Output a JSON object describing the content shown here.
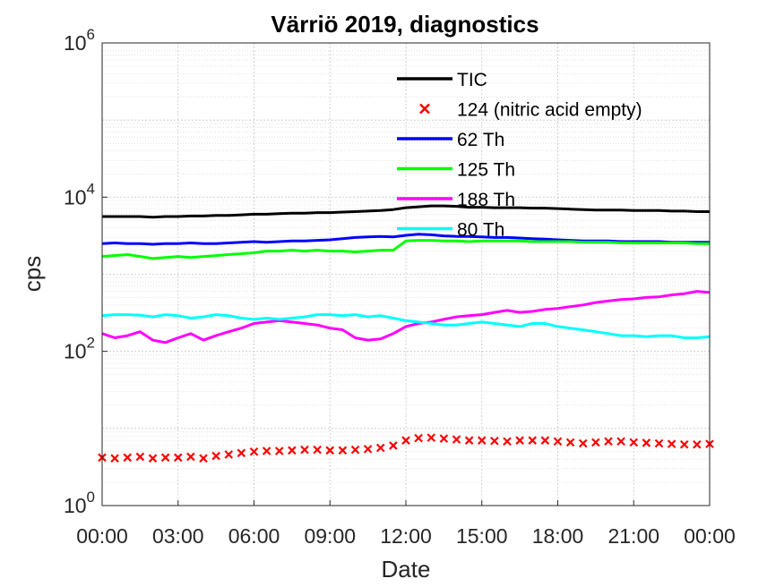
{
  "chart_data": {
    "type": "line",
    "title": "Värriö 2019, diagnostics",
    "xlabel": "Date",
    "ylabel": "cps",
    "x_tick_labels": [
      "00:00",
      "03:00",
      "06:00",
      "09:00",
      "12:00",
      "15:00",
      "18:00",
      "21:00",
      "00:00"
    ],
    "x_range_hours": [
      0,
      24
    ],
    "y_scale": "log",
    "ylim": [
      1,
      1000000
    ],
    "y_ticks": [
      {
        "base": "10",
        "exp": "0"
      },
      {
        "base": "10",
        "exp": "2"
      },
      {
        "base": "10",
        "exp": "4"
      },
      {
        "base": "10",
        "exp": "6"
      }
    ],
    "grid": true,
    "legend_position": "top-center",
    "x_hours": [
      0,
      0.5,
      1,
      1.5,
      2,
      2.5,
      3,
      3.5,
      4,
      4.5,
      5,
      5.5,
      6,
      6.5,
      7,
      7.5,
      8,
      8.5,
      9,
      9.5,
      10,
      10.5,
      11,
      11.5,
      12,
      12.5,
      13,
      13.5,
      14,
      14.5,
      15,
      15.5,
      16,
      16.5,
      17,
      17.5,
      18,
      18.5,
      19,
      19.5,
      20,
      20.5,
      21,
      21.5,
      22,
      22.5,
      23,
      23.5,
      24
    ],
    "series": [
      {
        "name": "TIC",
        "color": "#000000",
        "style": "line",
        "values": [
          5600,
          5600,
          5600,
          5600,
          5500,
          5600,
          5600,
          5700,
          5700,
          5800,
          5800,
          5900,
          6000,
          6000,
          6100,
          6200,
          6200,
          6300,
          6300,
          6400,
          6500,
          6600,
          6700,
          6900,
          7300,
          7500,
          7700,
          7700,
          7600,
          7400,
          7400,
          7300,
          7300,
          7300,
          7200,
          7200,
          7100,
          7000,
          6900,
          6800,
          6800,
          6800,
          6700,
          6700,
          6700,
          6600,
          6600,
          6500,
          6500
        ]
      },
      {
        "name": "124 (nitric acid empty)",
        "color": "#ff0000",
        "style": "marker",
        "values": [
          4.2,
          4.1,
          4.2,
          4.3,
          4.1,
          4.2,
          4.2,
          4.3,
          4.1,
          4.4,
          4.6,
          4.8,
          5.0,
          5.1,
          5.1,
          5.2,
          5.3,
          5.3,
          5.2,
          5.2,
          5.3,
          5.4,
          5.6,
          6.0,
          7.0,
          7.5,
          7.6,
          7.4,
          7.2,
          7.0,
          7.0,
          6.9,
          6.8,
          7.0,
          7.0,
          7.0,
          6.8,
          6.6,
          6.4,
          6.6,
          6.8,
          6.8,
          6.6,
          6.5,
          6.4,
          6.3,
          6.2,
          6.2,
          6.3
        ]
      },
      {
        "name": "62 Th",
        "color": "#0000ff",
        "style": "line",
        "values": [
          2500,
          2550,
          2500,
          2500,
          2450,
          2500,
          2500,
          2550,
          2500,
          2500,
          2550,
          2600,
          2650,
          2600,
          2650,
          2700,
          2700,
          2750,
          2800,
          2900,
          3000,
          3050,
          3100,
          3050,
          3200,
          3300,
          3250,
          3150,
          3100,
          3100,
          3050,
          3000,
          3000,
          2950,
          2900,
          2850,
          2800,
          2750,
          2700,
          2700,
          2700,
          2650,
          2650,
          2650,
          2650,
          2600,
          2600,
          2600,
          2600
        ]
      },
      {
        "name": "125 Th",
        "color": "#00ff00",
        "style": "line",
        "values": [
          1700,
          1750,
          1800,
          1700,
          1600,
          1650,
          1700,
          1650,
          1700,
          1750,
          1800,
          1850,
          1900,
          2000,
          2000,
          2050,
          2000,
          2050,
          2000,
          2000,
          1950,
          2000,
          2050,
          2050,
          2700,
          2750,
          2750,
          2700,
          2700,
          2650,
          2700,
          2700,
          2700,
          2700,
          2650,
          2650,
          2650,
          2650,
          2600,
          2600,
          2600,
          2550,
          2550,
          2550,
          2550,
          2550,
          2550,
          2500,
          2500
        ]
      },
      {
        "name": "188 Th",
        "color": "#ff00ff",
        "style": "line",
        "values": [
          170,
          150,
          160,
          180,
          140,
          130,
          150,
          170,
          140,
          160,
          180,
          200,
          230,
          240,
          250,
          240,
          230,
          220,
          200,
          190,
          150,
          140,
          145,
          170,
          210,
          230,
          240,
          260,
          280,
          290,
          300,
          320,
          340,
          320,
          330,
          350,
          360,
          380,
          400,
          430,
          450,
          470,
          480,
          500,
          510,
          540,
          560,
          600,
          580
        ]
      },
      {
        "name": "80 Th",
        "color": "#00ffff",
        "style": "line",
        "values": [
          290,
          300,
          300,
          295,
          280,
          300,
          290,
          270,
          280,
          300,
          290,
          270,
          260,
          270,
          260,
          270,
          280,
          300,
          300,
          290,
          300,
          280,
          290,
          270,
          250,
          240,
          230,
          220,
          220,
          230,
          240,
          230,
          220,
          210,
          230,
          230,
          210,
          200,
          190,
          180,
          170,
          160,
          160,
          155,
          160,
          160,
          150,
          150,
          155
        ]
      }
    ]
  }
}
